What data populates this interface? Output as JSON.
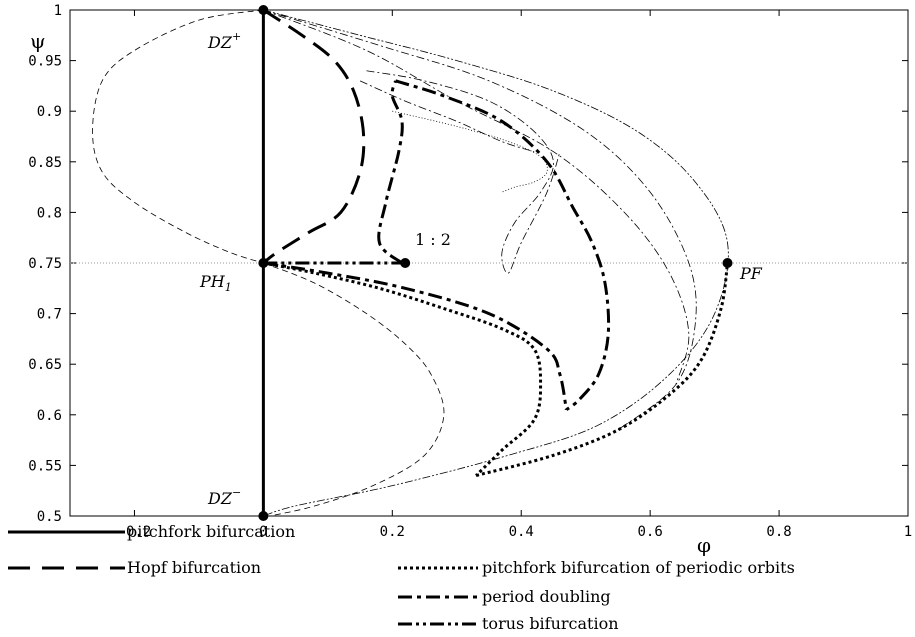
{
  "chart_data": {
    "type": "line",
    "xlabel": "φ",
    "ylabel": "ψ",
    "xlim": [
      -0.3,
      1
    ],
    "ylim": [
      0.5,
      1
    ],
    "x_ticks": [
      "-0.2",
      "0",
      "0.2",
      "0.4",
      "0.6",
      "0.8",
      "1"
    ],
    "y_ticks": [
      "0.5",
      "0.55",
      "0.6",
      "0.65",
      "0.7",
      "0.75",
      "0.8",
      "0.85",
      "0.9",
      "0.95",
      "1"
    ],
    "legend": [
      {
        "label": "pitchfork bifurcation",
        "style": "solid"
      },
      {
        "label": "Hopf bifurcation",
        "style": "dashed"
      },
      {
        "label": "pitchfork bifurcation of periodic orbits",
        "style": "dotted"
      },
      {
        "label": "period doubling",
        "style": "dashdot"
      },
      {
        "label": "torus bifurcation",
        "style": "dashdotdot"
      }
    ],
    "annotations": {
      "dz_plus": "DZ",
      "dz_plus_sup": "+",
      "dz_minus": "DZ",
      "dz_minus_sup": "−",
      "ph1": "PH",
      "ph1_sub": "1",
      "pf": "PF",
      "resonance": "1 : 2"
    },
    "points": [
      {
        "name": "DZ+",
        "x": 0,
        "y": 1
      },
      {
        "name": "PH1",
        "x": 0,
        "y": 0.75
      },
      {
        "name": "DZ-",
        "x": 0,
        "y": 0.5
      },
      {
        "name": "1:2",
        "x": 0.22,
        "y": 0.75
      },
      {
        "name": "PF",
        "x": 0.72,
        "y": 0.75
      }
    ],
    "reference_line_y": 0.75,
    "series": [
      {
        "style": "solid",
        "x": [
          0,
          0
        ],
        "y": [
          0.5,
          1
        ]
      },
      {
        "style": "dashed-thick",
        "x": [
          0,
          0.06,
          0.11,
          0.14,
          0.155,
          0.15,
          0.12,
          0.07,
          0.02,
          0
        ],
        "y": [
          1,
          0.975,
          0.95,
          0.92,
          0.88,
          0.84,
          0.8,
          0.78,
          0.76,
          0.75
        ]
      },
      {
        "style": "dashed-thin",
        "x": [
          0,
          -0.1,
          -0.2,
          -0.25,
          -0.265,
          -0.25,
          -0.2,
          -0.12,
          -0.05,
          0
        ],
        "y": [
          1,
          0.99,
          0.96,
          0.93,
          0.88,
          0.84,
          0.81,
          0.78,
          0.76,
          0.75
        ]
      },
      {
        "style": "dashed-thin",
        "x": [
          0,
          0.08,
          0.16,
          0.22,
          0.26,
          0.28,
          0.25,
          0.17,
          0.08,
          0.01
        ],
        "y": [
          0.75,
          0.73,
          0.7,
          0.67,
          0.64,
          0.6,
          0.56,
          0.53,
          0.51,
          0.5
        ]
      },
      {
        "style": "dashdotdot",
        "x": [
          0,
          0.1,
          0.16,
          0.19,
          0.215
        ],
        "y": [
          0.75,
          0.75,
          0.75,
          0.75,
          0.75
        ]
      },
      {
        "style": "dashdot",
        "x": [
          0,
          0.1,
          0.22,
          0.35,
          0.44,
          0.46,
          0.47
        ],
        "y": [
          0.75,
          0.74,
          0.725,
          0.7,
          0.665,
          0.64,
          0.605
        ]
      },
      {
        "style": "dashdot",
        "x": [
          0.215,
          0.18,
          0.19,
          0.21,
          0.215,
          0.2,
          0.205
        ],
        "y": [
          0.75,
          0.77,
          0.81,
          0.86,
          0.89,
          0.915,
          0.93
        ]
      },
      {
        "style": "dashdot",
        "x": [
          0.205,
          0.28,
          0.37,
          0.44,
          0.48,
          0.51,
          0.53,
          0.535,
          0.52,
          0.49,
          0.47
        ],
        "y": [
          0.93,
          0.915,
          0.89,
          0.85,
          0.805,
          0.77,
          0.73,
          0.68,
          0.64,
          0.615,
          0.605
        ]
      },
      {
        "style": "dotted",
        "x": [
          0,
          0.08,
          0.18,
          0.28,
          0.37,
          0.42,
          0.43,
          0.42,
          0.37,
          0.33
        ],
        "y": [
          0.75,
          0.74,
          0.725,
          0.705,
          0.685,
          0.665,
          0.63,
          0.595,
          0.565,
          0.54
        ]
      },
      {
        "style": "dotted",
        "x": [
          0.33,
          0.45,
          0.55,
          0.63,
          0.68,
          0.71,
          0.72
        ],
        "y": [
          0.54,
          0.56,
          0.585,
          0.62,
          0.655,
          0.705,
          0.75
        ]
      },
      {
        "style": "dashdotdot-thin",
        "x": [
          0,
          0.15,
          0.3,
          0.45,
          0.58,
          0.67,
          0.72,
          0.7,
          0.63,
          0.52,
          0.38,
          0.2,
          0.05,
          0
        ],
        "y": [
          1,
          0.975,
          0.95,
          0.92,
          0.88,
          0.83,
          0.77,
          0.7,
          0.64,
          0.59,
          0.56,
          0.53,
          0.51,
          0.5
        ]
      },
      {
        "style": "dashdot-thin",
        "x": [
          0,
          0.18,
          0.35,
          0.5,
          0.6,
          0.66,
          0.67,
          0.64,
          0.55
        ],
        "y": [
          1,
          0.965,
          0.93,
          0.88,
          0.82,
          0.75,
          0.69,
          0.63,
          0.585
        ]
      },
      {
        "style": "dashdot-thin",
        "x": [
          0,
          0.16,
          0.3,
          0.45,
          0.56,
          0.63,
          0.66,
          0.64
        ],
        "y": [
          1,
          0.96,
          0.91,
          0.86,
          0.8,
          0.74,
          0.68,
          0.63
        ]
      },
      {
        "style": "dashdot-thin",
        "x": [
          0.16,
          0.25,
          0.35,
          0.42,
          0.45,
          0.43,
          0.39,
          0.37,
          0.38,
          0.4,
          0.44,
          0.46
        ],
        "y": [
          0.94,
          0.93,
          0.91,
          0.88,
          0.85,
          0.82,
          0.79,
          0.76,
          0.74,
          0.77,
          0.82,
          0.86
        ]
      },
      {
        "style": "dotted-thin",
        "x": [
          0.2,
          0.3,
          0.38,
          0.43,
          0.44,
          0.42,
          0.39,
          0.37
        ],
        "y": [
          0.9,
          0.885,
          0.87,
          0.855,
          0.84,
          0.83,
          0.825,
          0.82
        ]
      },
      {
        "style": "dashdot-thin",
        "x": [
          0.15,
          0.22,
          0.3,
          0.37,
          0.42
        ],
        "y": [
          0.93,
          0.91,
          0.89,
          0.87,
          0.86
        ]
      }
    ]
  }
}
